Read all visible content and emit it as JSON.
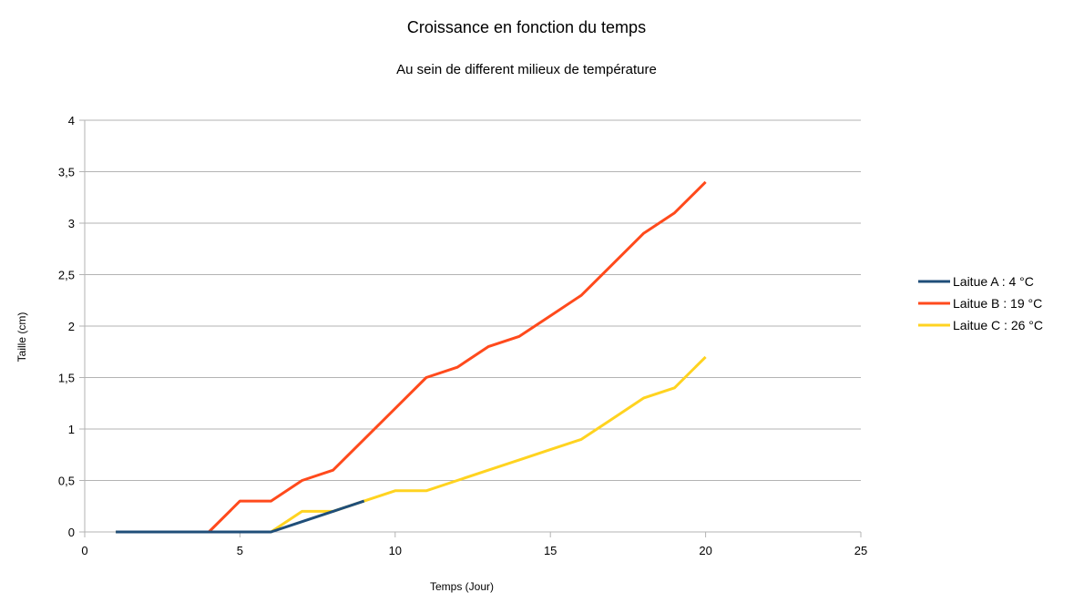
{
  "chart_data": {
    "type": "line",
    "title": "Croissance en fonction du temps",
    "subtitle": "Au sein de different milieux de température",
    "xlabel": "Temps (Jour)",
    "ylabel": "Taille (cm)",
    "xlim": [
      0,
      25
    ],
    "ylim": [
      0,
      4
    ],
    "x_ticks": [
      0,
      5,
      10,
      15,
      20,
      25
    ],
    "x_tick_labels": [
      "0",
      "5",
      "10",
      "15",
      "20",
      "25"
    ],
    "y_ticks": [
      0,
      0.5,
      1,
      1.5,
      2,
      2.5,
      3,
      3.5,
      4
    ],
    "y_tick_labels": [
      "0",
      "0,5",
      "1",
      "1,5",
      "2",
      "2,5",
      "3",
      "3,5",
      "4"
    ],
    "grid": "horizontal",
    "legend_position": "right",
    "series": [
      {
        "name": "Laitue A : 4 °C",
        "color": "#1f4e79",
        "points": [
          [
            1,
            0
          ],
          [
            2,
            0
          ],
          [
            3,
            0
          ],
          [
            4,
            0
          ],
          [
            5,
            0
          ],
          [
            6,
            0
          ],
          [
            7,
            0.1
          ],
          [
            8,
            0.2
          ],
          [
            9,
            0.3
          ]
        ]
      },
      {
        "name": "Laitue B : 19 °C",
        "color": "#ff4a1c",
        "points": [
          [
            1,
            0
          ],
          [
            2,
            0
          ],
          [
            3,
            0
          ],
          [
            4,
            0
          ],
          [
            5,
            0.3
          ],
          [
            6,
            0.3
          ],
          [
            7,
            0.5
          ],
          [
            8,
            0.6
          ],
          [
            9,
            0.9
          ],
          [
            10,
            1.2
          ],
          [
            11,
            1.5
          ],
          [
            12,
            1.6
          ],
          [
            13,
            1.8
          ],
          [
            14,
            1.9
          ],
          [
            15,
            2.1
          ],
          [
            16,
            2.3
          ],
          [
            17,
            2.6
          ],
          [
            18,
            2.9
          ],
          [
            19,
            3.1
          ],
          [
            20,
            3.4
          ]
        ]
      },
      {
        "name": "Laitue C : 26 °C",
        "color": "#ffd320",
        "points": [
          [
            1,
            0
          ],
          [
            2,
            0
          ],
          [
            3,
            0
          ],
          [
            4,
            0
          ],
          [
            5,
            0
          ],
          [
            6,
            0
          ],
          [
            7,
            0.2
          ],
          [
            8,
            0.2
          ],
          [
            9,
            0.3
          ],
          [
            10,
            0.4
          ],
          [
            11,
            0.4
          ],
          [
            12,
            0.5
          ],
          [
            13,
            0.6
          ],
          [
            14,
            0.7
          ],
          [
            15,
            0.8
          ],
          [
            16,
            0.9
          ],
          [
            17,
            1.1
          ],
          [
            18,
            1.3
          ],
          [
            19,
            1.4
          ],
          [
            20,
            1.7
          ]
        ]
      }
    ]
  }
}
